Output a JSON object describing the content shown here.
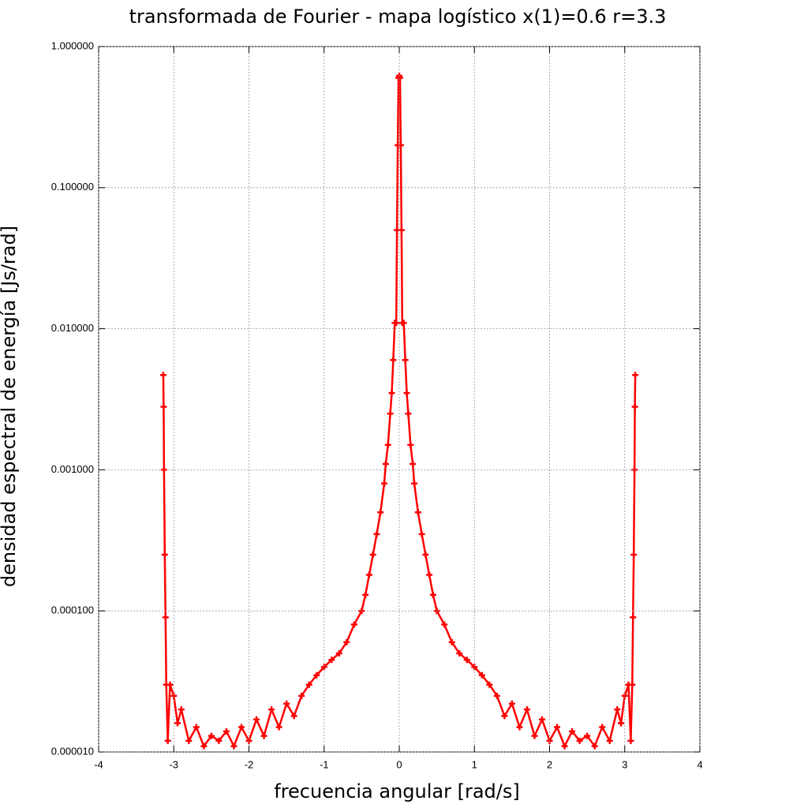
{
  "chart_data": {
    "type": "line",
    "title": "transformada de Fourier - mapa logístico x(1)=0.6   r=3.3",
    "x_label": "frecuencia angular [rad/s]",
    "y_label": "densidad espectral de energía [Js/rad]",
    "log_y": true,
    "grid": true,
    "xlim": [
      -4,
      4
    ],
    "xticks": [
      -4,
      -3,
      -2,
      -1,
      0,
      1,
      2,
      3,
      4
    ],
    "ylim": [
      1e-05,
      1
    ],
    "yticks": [
      {
        "value": 1e-05,
        "label": "0.000010"
      },
      {
        "value": 0.0001,
        "label": "0.000100"
      },
      {
        "value": 0.001,
        "label": "0.001000"
      },
      {
        "value": 0.01,
        "label": "0.010000"
      },
      {
        "value": 0.1,
        "label": "0.100000"
      },
      {
        "value": 1,
        "label": "1.000000"
      }
    ],
    "series": [
      {
        "color": "#ff0000",
        "x": [
          -3.14,
          -3.135,
          -3.13,
          -3.12,
          -3.11,
          -3.1,
          -3.08,
          -3.05,
          -3.0,
          -2.95,
          -2.9,
          -2.8,
          -2.7,
          -2.6,
          -2.5,
          -2.4,
          -2.3,
          -2.2,
          -2.1,
          -2.0,
          -1.9,
          -1.8,
          -1.7,
          -1.6,
          -1.5,
          -1.4,
          -1.3,
          -1.2,
          -1.1,
          -1.0,
          -0.9,
          -0.8,
          -0.7,
          -0.6,
          -0.5,
          -0.45,
          -0.4,
          -0.35,
          -0.3,
          -0.25,
          -0.2,
          -0.18,
          -0.15,
          -0.12,
          -0.1,
          -0.08,
          -0.06,
          -0.04,
          -0.03,
          -0.02,
          -0.01,
          0,
          0.01,
          0.02,
          0.03,
          0.04,
          0.06,
          0.08,
          0.1,
          0.12,
          0.15,
          0.18,
          0.2,
          0.25,
          0.3,
          0.35,
          0.4,
          0.45,
          0.5,
          0.6,
          0.7,
          0.8,
          0.9,
          1.0,
          1.1,
          1.2,
          1.3,
          1.4,
          1.5,
          1.6,
          1.7,
          1.8,
          1.9,
          2.0,
          2.1,
          2.2,
          2.3,
          2.4,
          2.5,
          2.6,
          2.7,
          2.8,
          2.9,
          2.95,
          3.0,
          3.05,
          3.08,
          3.1,
          3.11,
          3.12,
          3.13,
          3.135,
          3.14
        ],
        "values": [
          0.0047,
          0.0028,
          0.001,
          0.00025,
          9e-05,
          3e-05,
          1.2e-05,
          3e-05,
          2.5e-05,
          1.6e-05,
          2e-05,
          1.2e-05,
          1.5e-05,
          1.1e-05,
          1.3e-05,
          1.2e-05,
          1.4e-05,
          1.1e-05,
          1.5e-05,
          1.2e-05,
          1.7e-05,
          1.3e-05,
          2e-05,
          1.5e-05,
          2.2e-05,
          1.8e-05,
          2.5e-05,
          3e-05,
          3.5e-05,
          4e-05,
          4.5e-05,
          5e-05,
          6e-05,
          8e-05,
          0.0001,
          0.00013,
          0.00018,
          0.00025,
          0.00035,
          0.0005,
          0.0008,
          0.0011,
          0.0015,
          0.0025,
          0.0035,
          0.006,
          0.011,
          0.011,
          0.05,
          0.2,
          0.6,
          0.62,
          0.6,
          0.2,
          0.05,
          0.011,
          0.011,
          0.006,
          0.0035,
          0.0025,
          0.0015,
          0.0011,
          0.0008,
          0.0005,
          0.00035,
          0.00025,
          0.00018,
          0.00013,
          0.0001,
          8e-05,
          6e-05,
          5e-05,
          4.5e-05,
          4e-05,
          3.5e-05,
          3e-05,
          2.5e-05,
          1.8e-05,
          2.2e-05,
          1.5e-05,
          2e-05,
          1.3e-05,
          1.7e-05,
          1.2e-05,
          1.5e-05,
          1.1e-05,
          1.4e-05,
          1.2e-05,
          1.3e-05,
          1.1e-05,
          1.5e-05,
          1.2e-05,
          2e-05,
          1.6e-05,
          2.5e-05,
          3e-05,
          1.2e-05,
          3e-05,
          9e-05,
          0.00025,
          0.001,
          0.0028,
          0.0047
        ]
      }
    ]
  }
}
